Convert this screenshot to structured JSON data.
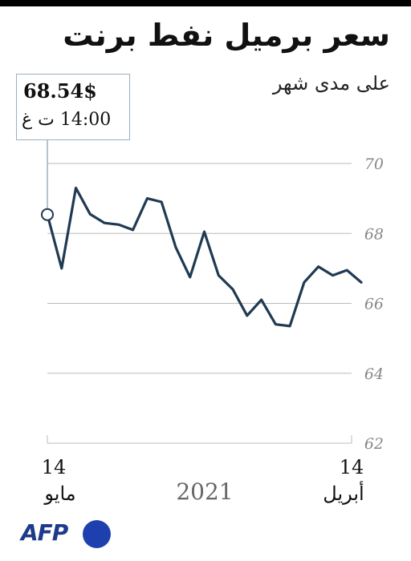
{
  "title": "سعر برميل نفط برنت",
  "subtitle": "على مدى شهر",
  "tooltip": {
    "value": "68.54$",
    "time": "14:00 ت غ"
  },
  "x_axis": {
    "start": {
      "day": "14",
      "month": "مايو"
    },
    "end": {
      "day": "14",
      "month": "أبريل"
    },
    "year": "2021"
  },
  "logo": "AFP",
  "colors": {
    "line": "#1f3a52",
    "grid": "#bbbbbb",
    "tick_label": "#888888",
    "tooltip_border": "#9ab0c4",
    "logo": "#1e40af"
  },
  "chart_data": {
    "type": "line",
    "title": "سعر برميل نفط برنت",
    "subtitle": "على مدى شهر",
    "xlabel": "",
    "ylabel": "",
    "ylim": [
      62,
      70
    ],
    "yticks": [
      62,
      64,
      66,
      68,
      70
    ],
    "grid": true,
    "x_tick_labels": [
      "14 أبريل",
      "14 مايو"
    ],
    "x_order": "right-to-left (oldest at right)",
    "highlight": {
      "index": 0,
      "value": 68.54
    },
    "values": [
      68.54,
      67.0,
      69.3,
      68.55,
      68.3,
      68.25,
      68.1,
      69.0,
      68.9,
      67.6,
      66.75,
      68.05,
      66.8,
      66.4,
      65.65,
      66.1,
      65.4,
      65.35,
      66.6,
      67.05,
      66.8,
      66.95,
      66.6
    ]
  }
}
